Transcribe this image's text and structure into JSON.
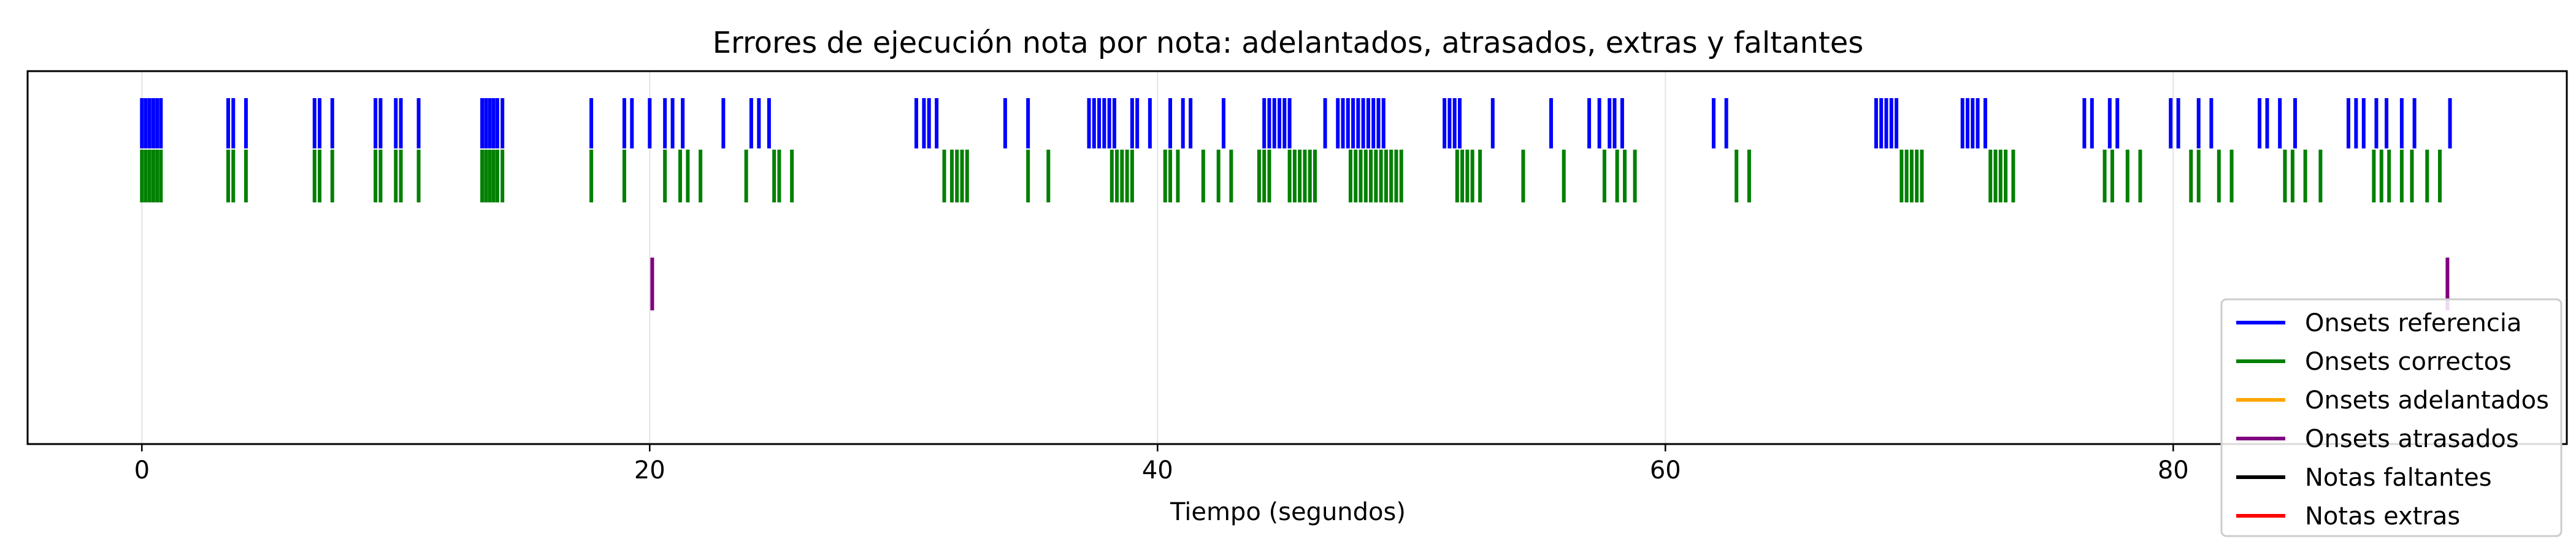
{
  "chart_data": {
    "type": "eventplot",
    "title": "Errores de ejecución nota por nota: adelantados, atrasados, extras y faltantes",
    "xlabel": "Tiempo (segundos)",
    "ylabel": "",
    "xlim": [
      -4.5,
      95.5
    ],
    "xticks": [
      0,
      20,
      40,
      60,
      80
    ],
    "grid": "vertical",
    "legend_position": "lower-right",
    "series": [
      {
        "name": "Onsets referencia",
        "color": "#0000ff",
        "values": [
          0.0,
          0.15,
          0.3,
          0.45,
          0.6,
          0.75,
          3.4,
          3.6,
          4.1,
          6.8,
          7.0,
          7.5,
          9.2,
          9.4,
          10.0,
          10.2,
          10.9,
          13.4,
          13.55,
          13.7,
          13.85,
          14.0,
          14.2,
          17.7,
          19.0,
          19.3,
          20.0,
          20.6,
          20.9,
          21.3,
          22.9,
          24.0,
          24.3,
          24.7,
          30.5,
          30.8,
          31.0,
          31.3,
          34.0,
          34.9,
          37.3,
          37.5,
          37.7,
          37.9,
          38.1,
          38.3,
          39.0,
          39.2,
          39.7,
          40.5,
          41.0,
          41.3,
          42.6,
          44.2,
          44.4,
          44.6,
          44.8,
          45.0,
          45.2,
          46.6,
          47.1,
          47.3,
          47.5,
          47.7,
          47.9,
          48.1,
          48.3,
          48.5,
          48.7,
          48.9,
          51.3,
          51.5,
          51.7,
          51.9,
          53.2,
          55.5,
          57.0,
          57.4,
          57.8,
          58.0,
          58.3,
          61.9,
          62.4,
          68.3,
          68.5,
          68.7,
          68.9,
          69.1,
          71.7,
          71.9,
          72.1,
          72.3,
          72.6,
          76.5,
          76.8,
          77.5,
          77.8,
          79.9,
          80.2,
          81.0,
          81.5,
          83.4,
          83.7,
          84.2,
          84.8,
          86.9,
          87.2,
          87.5,
          88.0,
          88.4,
          89.0,
          89.5,
          90.9
        ],
        "row": "top"
      },
      {
        "name": "Onsets correctos",
        "color": "#008000",
        "values": [
          0.0,
          0.15,
          0.3,
          0.45,
          0.6,
          0.75,
          3.4,
          3.6,
          4.1,
          6.8,
          7.0,
          7.5,
          9.2,
          9.4,
          10.0,
          10.2,
          10.9,
          13.4,
          13.55,
          13.7,
          13.85,
          14.0,
          14.2,
          17.7,
          19.0,
          20.6,
          21.2,
          21.5,
          22.0,
          23.8,
          24.9,
          25.1,
          25.6,
          31.6,
          31.9,
          32.1,
          32.3,
          32.5,
          34.9,
          35.7,
          38.2,
          38.4,
          38.6,
          38.8,
          39.0,
          40.3,
          40.5,
          40.8,
          41.8,
          42.4,
          42.9,
          44.0,
          44.2,
          44.4,
          45.2,
          45.4,
          45.6,
          45.8,
          46.0,
          46.2,
          47.6,
          47.8,
          48.0,
          48.2,
          48.4,
          48.6,
          48.8,
          49.0,
          49.2,
          49.4,
          49.6,
          51.8,
          52.0,
          52.2,
          52.4,
          52.7,
          54.4,
          56.0,
          57.6,
          58.1,
          58.4,
          58.8,
          62.8,
          63.3,
          69.3,
          69.5,
          69.7,
          69.9,
          70.1,
          72.8,
          73.0,
          73.2,
          73.4,
          73.7,
          77.3,
          77.6,
          78.2,
          78.7,
          80.7,
          81.0,
          81.8,
          82.3,
          84.4,
          84.7,
          85.2,
          85.8,
          87.9,
          88.2,
          88.5,
          89.0,
          89.4,
          90.0,
          90.5
        ],
        "row": "second"
      },
      {
        "name": "Onsets adelantados",
        "color": "#ffa500",
        "values": [],
        "row": "third"
      },
      {
        "name": "Onsets atrasados",
        "color": "#800080",
        "values": [
          20.1,
          90.8
        ],
        "row": "fourth"
      },
      {
        "name": "Notas faltantes",
        "color": "#000000",
        "values": [],
        "row": "fifth"
      },
      {
        "name": "Notas extras",
        "color": "#ff0000",
        "values": [],
        "row": "sixth"
      }
    ]
  }
}
